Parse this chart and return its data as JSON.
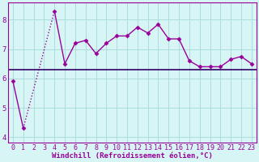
{
  "x": [
    0,
    1,
    2,
    3,
    4,
    5,
    6,
    7,
    8,
    9,
    10,
    11,
    12,
    13,
    14,
    15,
    16,
    17,
    18,
    19,
    20,
    21,
    22,
    23
  ],
  "y_line": [
    5.9,
    4.3,
    null,
    null,
    8.3,
    6.5,
    7.2,
    7.3,
    6.85,
    7.2,
    7.45,
    7.45,
    7.75,
    7.55,
    7.85,
    7.35,
    7.35,
    6.6,
    6.4,
    6.4,
    6.4,
    6.65,
    6.75,
    6.5
  ],
  "y_trend_val": 6.3,
  "line_color": "#990099",
  "trend_color": "#330066",
  "bg_color": "#d8f5f5",
  "grid_color": "#aadddd",
  "xlabel": "Windchill (Refroidissement éolien,°C)",
  "ylim_min": 3.8,
  "ylim_max": 8.6,
  "xlim_min": -0.5,
  "xlim_max": 23.5,
  "yticks": [
    4,
    5,
    6,
    7,
    8
  ],
  "xticks": [
    0,
    1,
    2,
    3,
    4,
    5,
    6,
    7,
    8,
    9,
    10,
    11,
    12,
    13,
    14,
    15,
    16,
    17,
    18,
    19,
    20,
    21,
    22,
    23
  ],
  "marker": "D",
  "markersize": 2.5,
  "linewidth": 1.0,
  "tick_fontsize": 6.0,
  "xlabel_fontsize": 6.5
}
